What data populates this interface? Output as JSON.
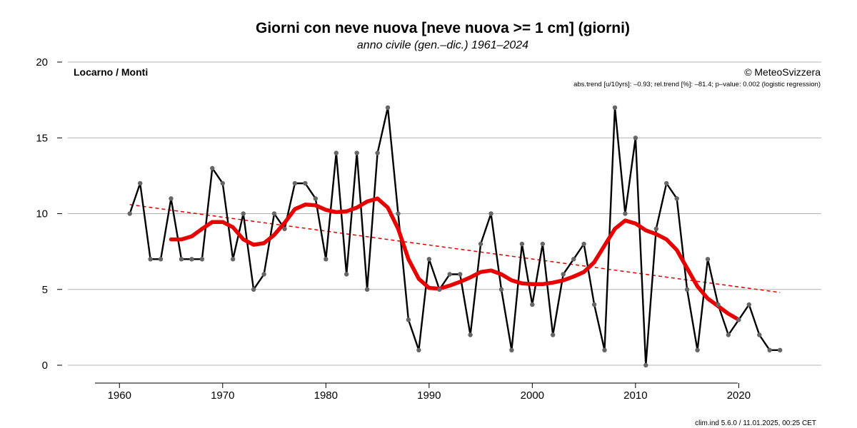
{
  "chart_data": {
    "type": "line",
    "title": "Giorni con neve nuova [neve nuova >= 1 cm] (giorni)",
    "subtitle": "anno civile (gen.–dic.) 1961–2024",
    "station": "Locarno / Monti",
    "copyright": "© MeteoSvizzera",
    "trend_text": "abs.trend [u/10yrs]: –0.93; rel.trend [%]: –81.4; p–value: 0.002 (logistic regression)",
    "footer": "clim.ind 5.6.0 / 11.01.2025, 00:25 CET",
    "xlabel": "",
    "ylabel": "",
    "xlim": [
      1955,
      2028
    ],
    "ylim": [
      0,
      20
    ],
    "x_ticks": [
      1960,
      1970,
      1980,
      1990,
      2000,
      2010,
      2020
    ],
    "y_ticks": [
      0,
      5,
      10,
      15,
      20
    ],
    "grid": "horizontal",
    "series": [
      {
        "name": "Giorni con neve nuova",
        "style": "black line with grey points",
        "x": [
          1961,
          1962,
          1963,
          1964,
          1965,
          1966,
          1967,
          1968,
          1969,
          1970,
          1971,
          1972,
          1973,
          1974,
          1975,
          1976,
          1977,
          1978,
          1979,
          1980,
          1981,
          1982,
          1983,
          1984,
          1985,
          1986,
          1987,
          1988,
          1989,
          1990,
          1991,
          1992,
          1993,
          1994,
          1995,
          1996,
          1997,
          1998,
          1999,
          2000,
          2001,
          2002,
          2003,
          2004,
          2005,
          2006,
          2007,
          2008,
          2009,
          2010,
          2011,
          2012,
          2013,
          2014,
          2015,
          2016,
          2017,
          2018,
          2019,
          2020,
          2021,
          2022,
          2023,
          2024
        ],
        "values": [
          10,
          12,
          7,
          7,
          11,
          7,
          7,
          7,
          13,
          12,
          7,
          10,
          5,
          6,
          10,
          9,
          12,
          12,
          11,
          7,
          14,
          6,
          14,
          5,
          14,
          17,
          10,
          3,
          1,
          7,
          5,
          6,
          6,
          2,
          8,
          10,
          5,
          1,
          8,
          4,
          8,
          2,
          6,
          7,
          8,
          4,
          1,
          17,
          10,
          15,
          0,
          9,
          12,
          11,
          5,
          1,
          7,
          4,
          2,
          3,
          4,
          2,
          1,
          1
        ]
      },
      {
        "name": "smoothed",
        "style": "thick red line",
        "x": [
          1965,
          1966,
          1967,
          1968,
          1969,
          1970,
          1971,
          1972,
          1973,
          1974,
          1975,
          1976,
          1977,
          1978,
          1979,
          1980,
          1981,
          1982,
          1983,
          1984,
          1985,
          1986,
          1987,
          1988,
          1989,
          1990,
          1991,
          1992,
          1993,
          1994,
          1995,
          1996,
          1997,
          1998,
          1999,
          2000,
          2001,
          2002,
          2003,
          2004,
          2005,
          2006,
          2007,
          2008,
          2009,
          2010,
          2011,
          2012,
          2013,
          2014,
          2015,
          2016,
          2017,
          2018,
          2019,
          2020
        ],
        "values": [
          8.3,
          8.3,
          8.5,
          9.0,
          9.45,
          9.45,
          9.1,
          8.3,
          7.95,
          8.05,
          8.6,
          9.4,
          10.3,
          10.6,
          10.55,
          10.25,
          10.1,
          10.15,
          10.4,
          10.8,
          11.0,
          10.4,
          9.0,
          7.0,
          5.7,
          5.1,
          5.05,
          5.25,
          5.5,
          5.8,
          6.15,
          6.25,
          6.0,
          5.6,
          5.4,
          5.35,
          5.35,
          5.45,
          5.6,
          5.85,
          6.15,
          6.8,
          7.9,
          9.0,
          9.55,
          9.35,
          8.9,
          8.65,
          8.3,
          7.6,
          6.4,
          5.2,
          4.4,
          3.9,
          3.4,
          3.0
        ]
      },
      {
        "name": "trend",
        "style": "dashed red line",
        "x": [
          1961,
          2024
        ],
        "values": [
          10.6,
          4.8
        ]
      }
    ]
  }
}
